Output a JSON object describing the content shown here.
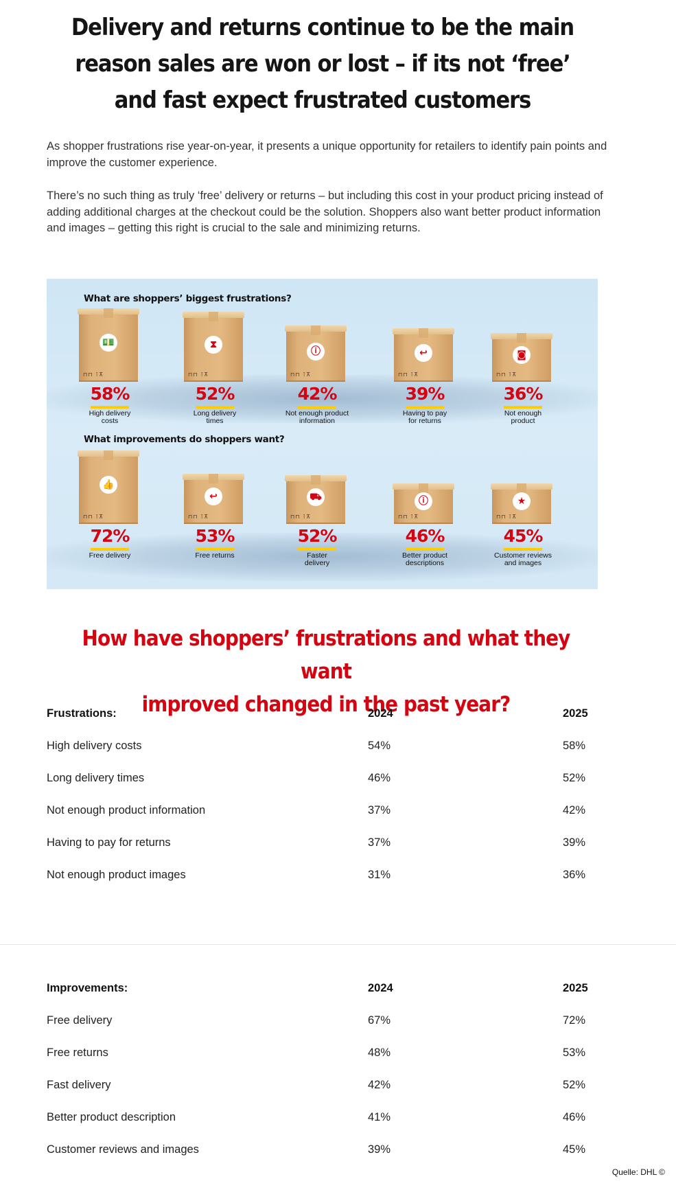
{
  "headline": {
    "line1": "Delivery and returns continue to be the main",
    "line2": "reason sales are won or lost – if its not ‘free’",
    "line3": "and fast expect frustrated customers"
  },
  "intro": {
    "paragraph1": "As shopper frustrations rise year-on-year, it presents a unique opportunity for retailers to identify pain points and improve the customer experience.",
    "paragraph2": "There’s no such thing as truly ‘free’ delivery or returns – but including this cost in your product pricing instead of adding additional charges at the checkout could be the solution. Shoppers also want better product information and images – getting this right is crucial to the sale and minimizing returns."
  },
  "infographic": {
    "frustrations_title": "What are shoppers’ biggest frustrations?",
    "improvements_title": "What improvements do shoppers want?",
    "frustrations": [
      {
        "percent": "58%",
        "label": "High delivery\ncosts",
        "icon": "money-icon",
        "glyph": "💵"
      },
      {
        "percent": "52%",
        "label": "Long delivery\ntimes",
        "icon": "hourglass-icon",
        "glyph": "⧗"
      },
      {
        "percent": "42%",
        "label": "Not enough product\ninformation",
        "icon": "info-icon",
        "glyph": "ⓘ"
      },
      {
        "percent": "39%",
        "label": "Having to pay\nfor returns",
        "icon": "return-arrow-icon",
        "glyph": "↩"
      },
      {
        "percent": "36%",
        "label": "Not enough\nproduct",
        "icon": "camera-icon",
        "glyph": "◙"
      }
    ],
    "improvements": [
      {
        "percent": "72%",
        "label": "Free delivery",
        "icon": "thumbs-up-icon",
        "glyph": "👍"
      },
      {
        "percent": "53%",
        "label": "Free returns",
        "icon": "return-arrow-icon",
        "glyph": "↩"
      },
      {
        "percent": "52%",
        "label": "Faster\ndelivery",
        "icon": "truck-icon",
        "glyph": "⛟"
      },
      {
        "percent": "46%",
        "label": "Better product\ndescriptions",
        "icon": "info-icon",
        "glyph": "ⓘ"
      },
      {
        "percent": "45%",
        "label": "Customer reviews\nand images",
        "icon": "star-camera-icon",
        "glyph": "★"
      }
    ],
    "box_marks": "⊓⊓ ⊺⊼"
  },
  "subhead": {
    "line1": "How have shoppers’ frustrations and what they want",
    "line2": "improved changed in the past year?"
  },
  "frustrations_table": {
    "header": [
      "Frustrations:",
      "2024",
      "2025"
    ],
    "rows": [
      [
        "High delivery costs",
        "54%",
        "58%"
      ],
      [
        "Long delivery times",
        "46%",
        "52%"
      ],
      [
        "Not enough product information",
        "37%",
        "42%"
      ],
      [
        "Having to pay for returns",
        "37%",
        "39%"
      ],
      [
        "Not enough product images",
        "31%",
        "36%"
      ]
    ]
  },
  "improvements_table": {
    "header": [
      "Improvements:",
      "2024",
      "2025"
    ],
    "rows": [
      [
        "Free delivery",
        "67%",
        "72%"
      ],
      [
        "Free returns",
        "48%",
        "53%"
      ],
      [
        "Fast delivery",
        "42%",
        "52%"
      ],
      [
        "Better product description",
        "41%",
        "46%"
      ],
      [
        "Customer reviews and images",
        "39%",
        "45%"
      ]
    ]
  },
  "credit": "Quelle: DHL ©"
}
